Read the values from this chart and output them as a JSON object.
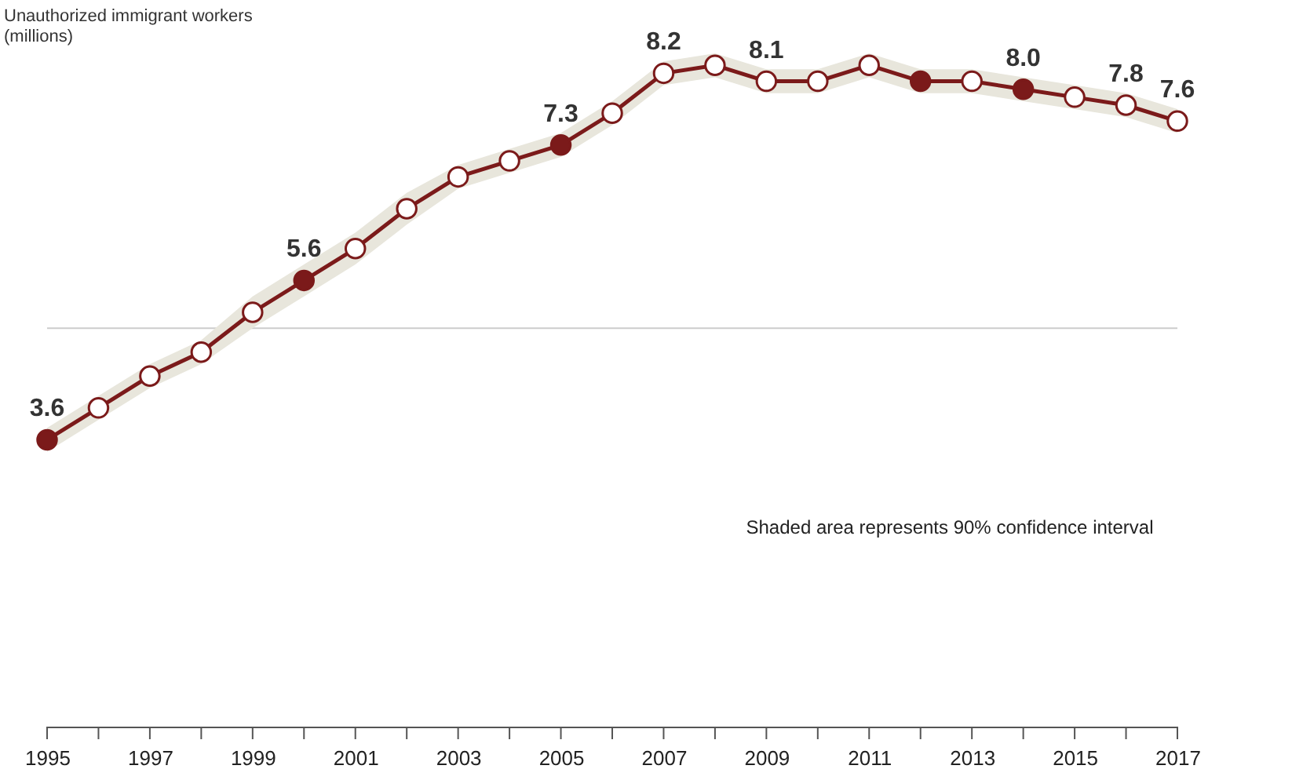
{
  "chart_data": {
    "type": "line",
    "ylabel": "Unauthorized immigrant workers (millions)",
    "x": [
      1995,
      1996,
      1997,
      1998,
      1999,
      2000,
      2001,
      2002,
      2003,
      2004,
      2005,
      2006,
      2007,
      2008,
      2009,
      2010,
      2011,
      2012,
      2013,
      2014,
      2015,
      2016,
      2017
    ],
    "series": [
      {
        "color": "#7b1a1a",
        "values": [
          3.6,
          4.0,
          4.4,
          4.7,
          5.2,
          5.6,
          6.0,
          6.5,
          6.9,
          7.1,
          7.3,
          7.7,
          8.2,
          8.3,
          8.1,
          8.1,
          8.3,
          8.1,
          8.1,
          8.0,
          7.9,
          7.8,
          7.6
        ],
        "lower": [
          3.45,
          3.85,
          4.25,
          4.55,
          5.0,
          5.4,
          5.8,
          6.3,
          6.75,
          6.95,
          7.15,
          7.55,
          8.05,
          8.15,
          7.95,
          7.95,
          8.15,
          7.95,
          7.95,
          7.85,
          7.75,
          7.65,
          7.45
        ],
        "upper": [
          3.75,
          4.15,
          4.55,
          4.85,
          5.4,
          5.8,
          6.2,
          6.7,
          7.05,
          7.25,
          7.45,
          7.85,
          8.35,
          8.45,
          8.25,
          8.25,
          8.45,
          8.25,
          8.25,
          8.15,
          8.05,
          7.95,
          7.75
        ],
        "colors": [
          "#7b1a1a",
          "#ffffff",
          "#ffffff",
          "#ffffff",
          "#ffffff",
          "#7b1a1a",
          "#ffffff",
          "#ffffff",
          "#ffffff",
          "#ffffff",
          "#7b1a1a",
          "#ffffff",
          "#ffffff",
          "#ffffff",
          "#ffffff",
          "#ffffff",
          "#ffffff",
          "#7b1a1a",
          "#ffffff",
          "#7b1a1a",
          "#ffffff",
          "#ffffff",
          "#ffffff"
        ],
        "value_labels": [
          "3.6",
          null,
          null,
          null,
          null,
          "5.6",
          null,
          null,
          null,
          null,
          "7.3",
          null,
          "8.2",
          null,
          "8.1",
          null,
          null,
          null,
          null,
          "8.0",
          null,
          "7.8",
          "7.6"
        ]
      }
    ],
    "xlim": [
      1995,
      2017
    ],
    "xticks": [
      1995,
      {
        "value": 1996,
        "label": null
      },
      1997,
      {
        "value": 1998,
        "label": null
      },
      1999,
      {
        "value": 2000,
        "label": null
      },
      2001,
      {
        "value": 2002,
        "label": null
      },
      2003,
      {
        "value": 2004,
        "label": null
      },
      2005,
      {
        "value": 2006,
        "label": null
      },
      2007,
      {
        "value": 2008,
        "label": null
      },
      2009,
      {
        "value": 2010,
        "label": null
      },
      2011,
      {
        "value": 2012,
        "label": null
      },
      2013,
      {
        "value": 2014,
        "label": null
      },
      2015,
      {
        "value": 2016,
        "label": null
      },
      2017
    ],
    "ref_lines": [
      {
        "axis": "y",
        "value": 5,
        "color": "#cccccc"
      }
    ],
    "tick_labels": "x",
    "marker": "circle",
    "annotations": [
      "Shaded area represents 90% confidence interval"
    ]
  }
}
